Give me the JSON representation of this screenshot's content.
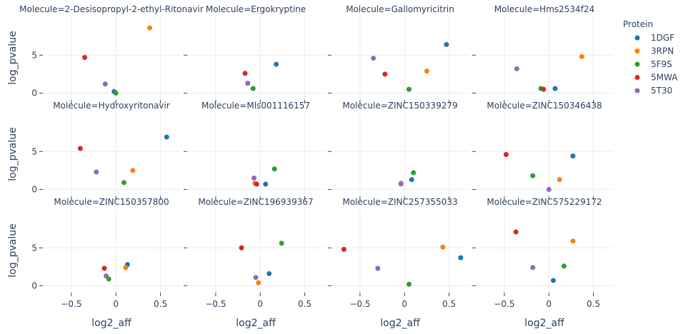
{
  "chart_data": {
    "type": "scatter",
    "xlabel": "log2_aff",
    "ylabel": "log_pvalue",
    "xlim": [
      -0.82,
      0.72
    ],
    "ylim": [
      -0.9,
      10.2
    ],
    "xticks": [
      -0.5,
      0,
      0.5
    ],
    "xtick_labels": [
      "−0.5",
      "0",
      "0.5"
    ],
    "yticks": [
      0,
      5
    ],
    "ytick_labels": [
      "0",
      "5"
    ],
    "grid": true,
    "legend_title": "Protein",
    "legend_placement": "right",
    "proteins": [
      {
        "name": "1DGF",
        "color": "#1f77b4"
      },
      {
        "name": "3RPN",
        "color": "#ff7f0e"
      },
      {
        "name": "5F9S",
        "color": "#2ca02c"
      },
      {
        "name": "5MWA",
        "color": "#d62728"
      },
      {
        "name": "5T30",
        "color": "#9467bd"
      }
    ],
    "facets": [
      {
        "title": "Molecule=2-Desisopropyl-2-ethyl-Ritonavir",
        "points": [
          {
            "protein": "1DGF",
            "x": -0.02,
            "y": 0.2
          },
          {
            "protein": "3RPN",
            "x": 0.38,
            "y": 8.6
          },
          {
            "protein": "5F9S",
            "x": 0.0,
            "y": 0.0
          },
          {
            "protein": "5MWA",
            "x": -0.35,
            "y": 4.7
          },
          {
            "protein": "5T30",
            "x": -0.12,
            "y": 1.2
          }
        ]
      },
      {
        "title": "Molecule=Ergokryptine",
        "points": [
          {
            "protein": "1DGF",
            "x": 0.18,
            "y": 3.8
          },
          {
            "protein": "5F9S",
            "x": -0.08,
            "y": 0.6
          },
          {
            "protein": "5MWA",
            "x": -0.17,
            "y": 2.6
          },
          {
            "protein": "5T30",
            "x": -0.14,
            "y": 1.3
          }
        ]
      },
      {
        "title": "Molecule=Gallomyricitrin",
        "points": [
          {
            "protein": "1DGF",
            "x": 0.47,
            "y": 6.4
          },
          {
            "protein": "3RPN",
            "x": 0.25,
            "y": 2.9
          },
          {
            "protein": "5F9S",
            "x": 0.05,
            "y": 0.5
          },
          {
            "protein": "5MWA",
            "x": -0.22,
            "y": 2.5
          },
          {
            "protein": "5T30",
            "x": -0.35,
            "y": 4.6
          }
        ]
      },
      {
        "title": "Molecule=Hms2534f24",
        "points": [
          {
            "protein": "1DGF",
            "x": 0.07,
            "y": 0.6
          },
          {
            "protein": "3RPN",
            "x": 0.37,
            "y": 4.8
          },
          {
            "protein": "5F9S",
            "x": -0.09,
            "y": 0.6
          },
          {
            "protein": "5MWA",
            "x": -0.06,
            "y": 0.5
          },
          {
            "protein": "5T30",
            "x": -0.36,
            "y": 3.2
          }
        ]
      },
      {
        "title": "Molecule=Hydroxyritonavir",
        "points": [
          {
            "protein": "1DGF",
            "x": 0.57,
            "y": 6.9
          },
          {
            "protein": "3RPN",
            "x": 0.19,
            "y": 2.5
          },
          {
            "protein": "5F9S",
            "x": 0.09,
            "y": 0.9
          },
          {
            "protein": "5MWA",
            "x": -0.4,
            "y": 5.4
          },
          {
            "protein": "5T30",
            "x": -0.22,
            "y": 2.3
          }
        ]
      },
      {
        "title": "Molecule=Mls001116157",
        "points": [
          {
            "protein": "1DGF",
            "x": 0.06,
            "y": 0.7
          },
          {
            "protein": "3RPN",
            "x": -0.06,
            "y": 0.8
          },
          {
            "protein": "5F9S",
            "x": 0.16,
            "y": 2.7
          },
          {
            "protein": "5MWA",
            "x": -0.04,
            "y": 0.7
          },
          {
            "protein": "5T30",
            "x": -0.07,
            "y": 1.5
          }
        ]
      },
      {
        "title": "Molecule=ZINC150339279",
        "points": [
          {
            "protein": "1DGF",
            "x": 0.08,
            "y": 1.3
          },
          {
            "protein": "3RPN",
            "x": -0.04,
            "y": 0.7
          },
          {
            "protein": "5F9S",
            "x": 0.1,
            "y": 2.2
          },
          {
            "protein": "5T30",
            "x": -0.04,
            "y": 0.8
          }
        ]
      },
      {
        "title": "Molecule=ZINC150346438",
        "points": [
          {
            "protein": "1DGF",
            "x": 0.27,
            "y": 4.4
          },
          {
            "protein": "3RPN",
            "x": 0.12,
            "y": 1.3
          },
          {
            "protein": "5F9S",
            "x": -0.18,
            "y": 1.8
          },
          {
            "protein": "5MWA",
            "x": -0.48,
            "y": 4.6
          },
          {
            "protein": "5T30",
            "x": 0.0,
            "y": 0.0
          }
        ]
      },
      {
        "title": "Molecule=ZINC150357800",
        "points": [
          {
            "protein": "1DGF",
            "x": 0.13,
            "y": 2.8
          },
          {
            "protein": "3RPN",
            "x": 0.11,
            "y": 2.4
          },
          {
            "protein": "5F9S",
            "x": -0.08,
            "y": 0.9
          },
          {
            "protein": "5MWA",
            "x": -0.13,
            "y": 2.3
          },
          {
            "protein": "5T30",
            "x": -0.11,
            "y": 1.3
          }
        ]
      },
      {
        "title": "Molecule=ZINC196939367",
        "points": [
          {
            "protein": "1DGF",
            "x": 0.1,
            "y": 1.6
          },
          {
            "protein": "3RPN",
            "x": -0.02,
            "y": 0.4
          },
          {
            "protein": "5F9S",
            "x": 0.24,
            "y": 5.6
          },
          {
            "protein": "5MWA",
            "x": -0.21,
            "y": 5.0
          },
          {
            "protein": "5T30",
            "x": -0.05,
            "y": 1.1
          }
        ]
      },
      {
        "title": "Molecule=ZINC257355033",
        "points": [
          {
            "protein": "1DGF",
            "x": 0.63,
            "y": 3.7
          },
          {
            "protein": "3RPN",
            "x": 0.43,
            "y": 5.1
          },
          {
            "protein": "5F9S",
            "x": 0.05,
            "y": 0.2
          },
          {
            "protein": "5MWA",
            "x": -0.68,
            "y": 4.8
          },
          {
            "protein": "5T30",
            "x": -0.3,
            "y": 2.3
          }
        ]
      },
      {
        "title": "Molecule=ZINC575229172",
        "points": [
          {
            "protein": "1DGF",
            "x": 0.05,
            "y": 0.7
          },
          {
            "protein": "3RPN",
            "x": 0.27,
            "y": 5.9
          },
          {
            "protein": "5F9S",
            "x": 0.17,
            "y": 2.6
          },
          {
            "protein": "5MWA",
            "x": -0.37,
            "y": 7.1
          },
          {
            "protein": "5T30",
            "x": -0.18,
            "y": 2.4
          }
        ]
      }
    ]
  }
}
